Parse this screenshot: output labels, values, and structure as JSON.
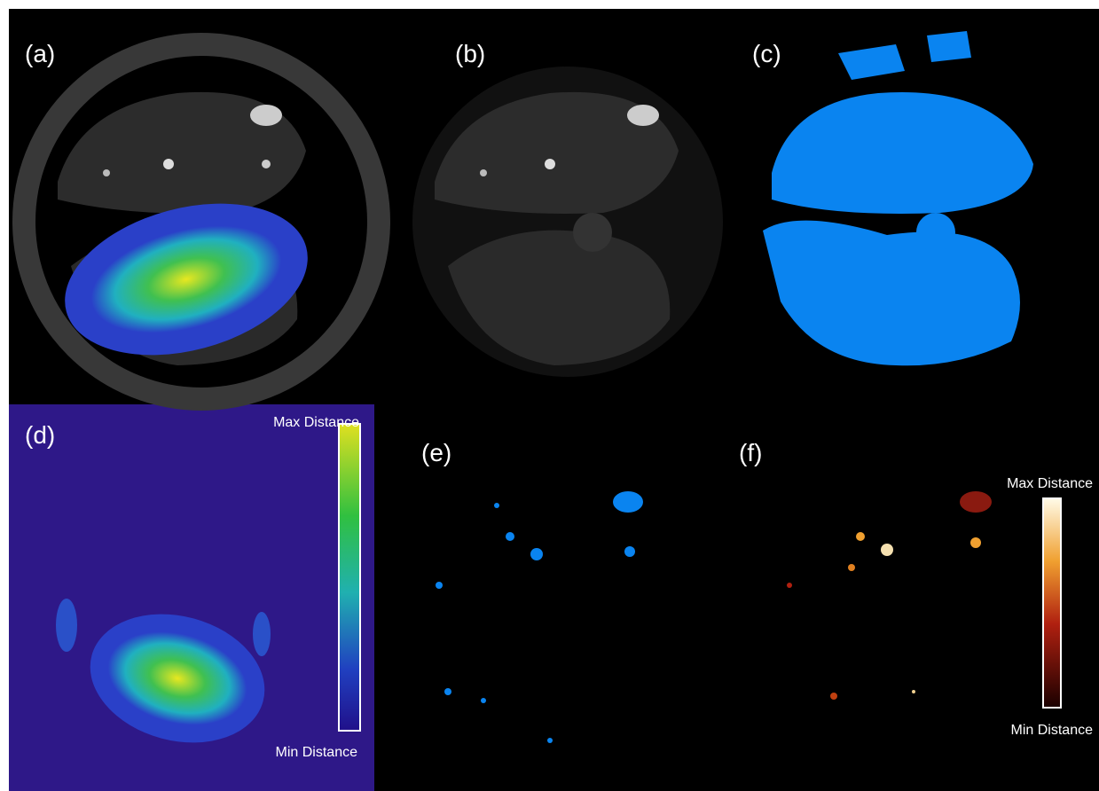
{
  "panels": [
    {
      "label": "(a)"
    },
    {
      "label": "(b)"
    },
    {
      "label": "(c)"
    },
    {
      "label": "(d)"
    },
    {
      "label": "(e)"
    },
    {
      "label": "(f)"
    }
  ],
  "colorbars": [
    {
      "max_label": "Max Distance",
      "min_label": "Min Distance"
    },
    {
      "max_label": "Max Distance",
      "min_label": "Min Distance"
    }
  ]
}
